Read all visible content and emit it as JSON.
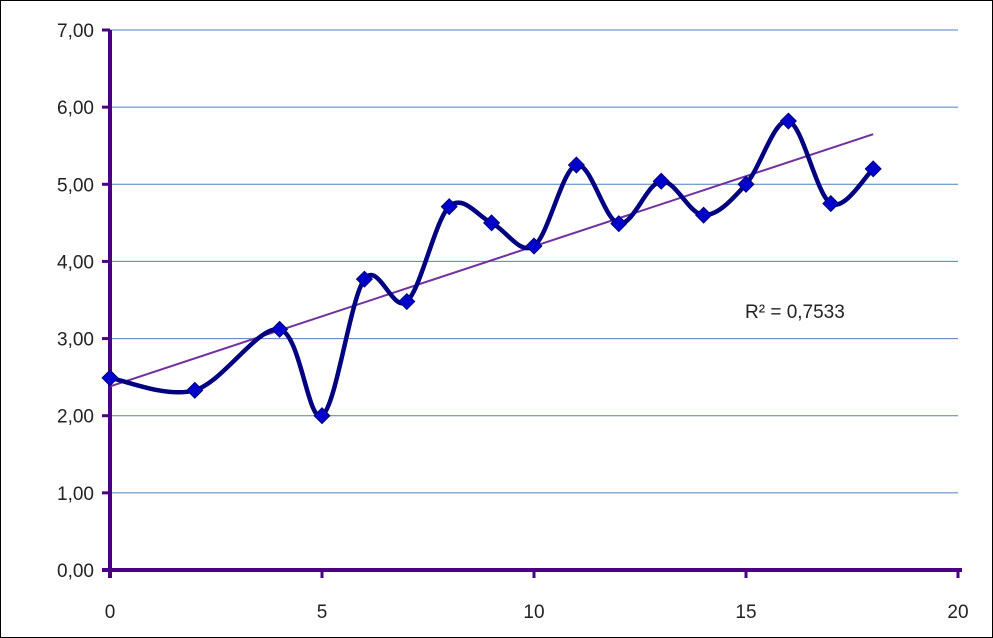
{
  "chart_data": {
    "type": "scatter",
    "title": "",
    "xlabel": "",
    "ylabel": "",
    "xlim": [
      0,
      20
    ],
    "ylim": [
      0,
      7
    ],
    "x_ticks": [
      0,
      5,
      10,
      15,
      20
    ],
    "x_tick_labels": [
      "0",
      "5",
      "10",
      "15",
      "20"
    ],
    "y_ticks": [
      0,
      1,
      2,
      3,
      4,
      5,
      6,
      7
    ],
    "y_tick_labels": [
      "0,00",
      "1,00",
      "2,00",
      "3,00",
      "4,00",
      "5,00",
      "6,00",
      "7,00"
    ],
    "grid": "horizontal",
    "legend": "none",
    "series": [
      {
        "style": "smoothed line with diamond markers",
        "x": [
          0,
          2,
          4,
          5,
          6,
          7,
          8,
          9,
          10,
          11,
          12,
          13,
          14,
          15,
          16,
          17,
          18
        ],
        "y": [
          2.49,
          2.33,
          3.12,
          2.0,
          3.77,
          3.48,
          4.71,
          4.5,
          4.2,
          5.25,
          4.49,
          5.04,
          4.6,
          5.0,
          5.82,
          4.75,
          5.2
        ],
        "line_color": "#000080",
        "marker_color": "#0000cc"
      }
    ],
    "trendline": {
      "type": "linear",
      "x": [
        0,
        18
      ],
      "y": [
        2.38,
        5.65
      ],
      "color": "#7030a0"
    },
    "annotation": "R² = 0,7533",
    "axis_color": "#4b0082",
    "grid_color": "#4f81bd"
  }
}
